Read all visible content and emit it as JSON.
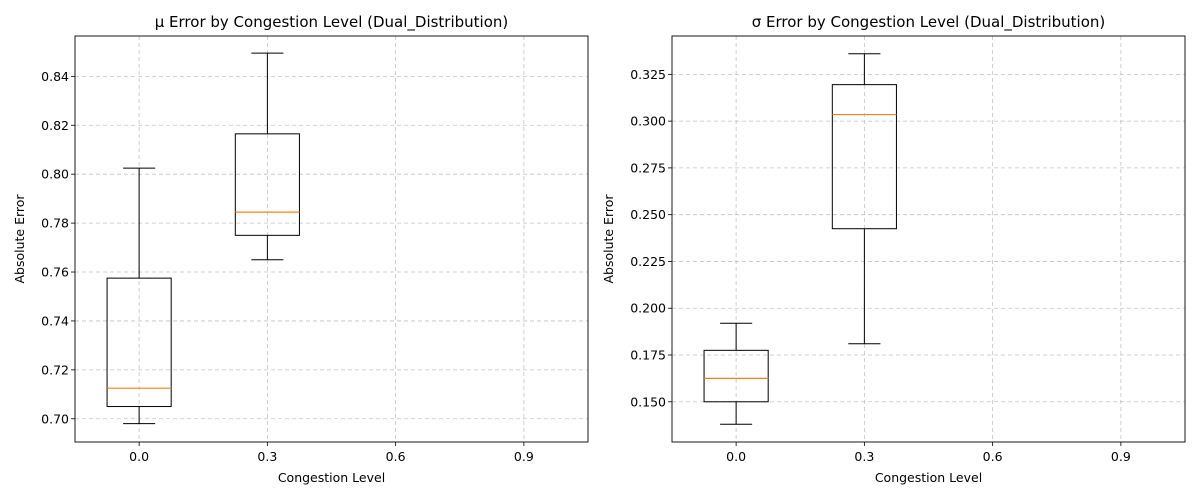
{
  "chart_data": [
    {
      "type": "box",
      "title": "μ Error by Congestion Level (Dual_Distribution)",
      "xlabel": "Congestion Level",
      "ylabel": "Absolute Error",
      "categories": [
        "0.0",
        "0.3",
        "0.6",
        "0.9"
      ],
      "ylim": [
        0.6905,
        0.8565
      ],
      "yticks": [
        0.7,
        0.72,
        0.74,
        0.76,
        0.78,
        0.8,
        0.82,
        0.84
      ],
      "ytick_labels": [
        "0.70",
        "0.72",
        "0.74",
        "0.76",
        "0.78",
        "0.80",
        "0.82",
        "0.84"
      ],
      "grid": true,
      "boxes": [
        {
          "category": "0.0",
          "whisker_low": 0.698,
          "q1": 0.705,
          "median": 0.7125,
          "q3": 0.7575,
          "whisker_high": 0.8025
        },
        {
          "category": "0.3",
          "whisker_low": 0.765,
          "q1": 0.775,
          "median": 0.7845,
          "q3": 0.8165,
          "whisker_high": 0.8495
        }
      ]
    },
    {
      "type": "box",
      "title": "σ Error by Congestion Level (Dual_Distribution)",
      "xlabel": "Congestion Level",
      "ylabel": "Absolute Error",
      "categories": [
        "0.0",
        "0.3",
        "0.6",
        "0.9"
      ],
      "ylim": [
        0.1285,
        0.3455
      ],
      "yticks": [
        0.15,
        0.175,
        0.2,
        0.225,
        0.25,
        0.275,
        0.3,
        0.325
      ],
      "ytick_labels": [
        "0.150",
        "0.175",
        "0.200",
        "0.225",
        "0.250",
        "0.275",
        "0.300",
        "0.325"
      ],
      "grid": true,
      "boxes": [
        {
          "category": "0.0",
          "whisker_low": 0.138,
          "q1": 0.15,
          "median": 0.1625,
          "q3": 0.1775,
          "whisker_high": 0.192
        },
        {
          "category": "0.3",
          "whisker_low": 0.181,
          "q1": 0.2425,
          "median": 0.3035,
          "q3": 0.3195,
          "whisker_high": 0.336
        }
      ]
    }
  ],
  "colors": {
    "box": "#000000",
    "median": "#ff7f0e",
    "grid": "#b0b0b0",
    "background": "#ffffff"
  }
}
